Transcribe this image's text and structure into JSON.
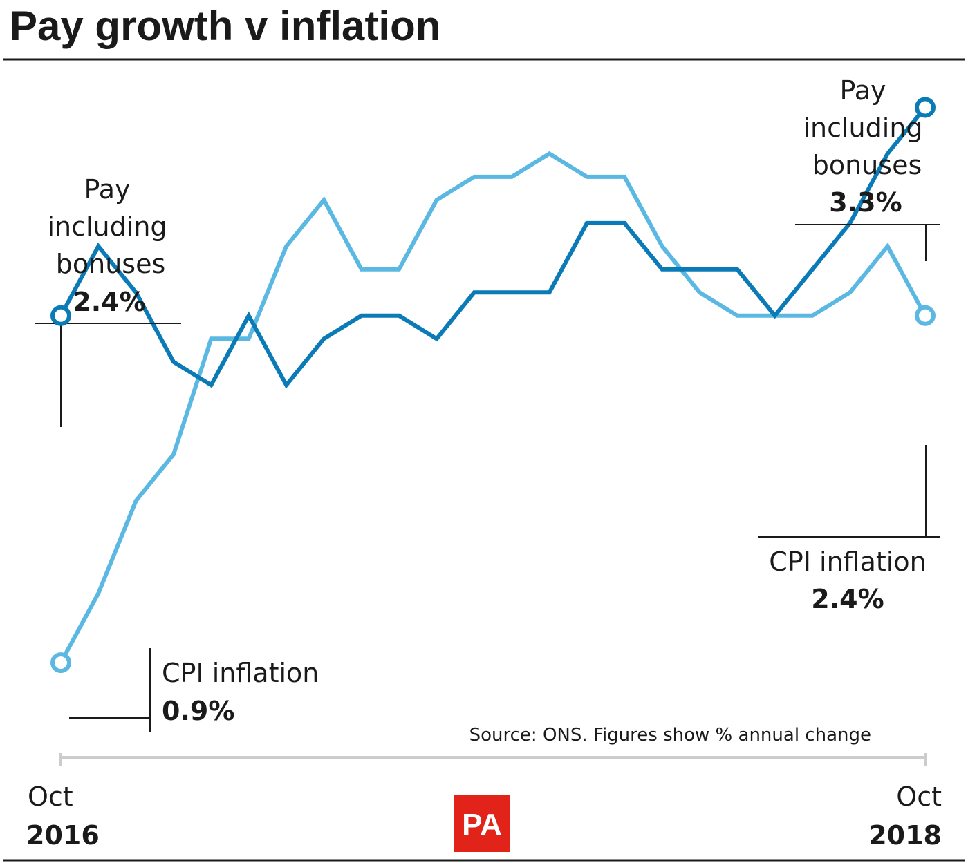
{
  "title": "Pay growth v inflation",
  "source": "Source: ONS. Figures show % annual change",
  "logo": "PA",
  "colors": {
    "pay": "#0a7bb6",
    "cpi": "#5bb8e2",
    "text": "#1a1a1a",
    "axis": "#cccccc",
    "logo_bg": "#e2231a"
  },
  "chart_data": {
    "type": "line",
    "x_start": "Oct 2016",
    "x_end": "Oct 2018",
    "ylim": [
      0.5,
      3.6
    ],
    "series": [
      {
        "name": "Pay including bonuses",
        "values": [
          2.4,
          2.7,
          2.5,
          2.2,
          2.1,
          2.4,
          2.1,
          2.3,
          2.4,
          2.4,
          2.3,
          2.5,
          2.5,
          2.5,
          2.8,
          2.8,
          2.6,
          2.6,
          2.6,
          2.4,
          2.6,
          2.8,
          3.1,
          3.3
        ]
      },
      {
        "name": "CPI inflation",
        "values": [
          0.9,
          1.2,
          1.6,
          1.8,
          2.3,
          2.3,
          2.7,
          2.9,
          2.6,
          2.6,
          2.9,
          3.0,
          3.0,
          3.1,
          3.0,
          3.0,
          2.7,
          2.5,
          2.4,
          2.4,
          2.4,
          2.5,
          2.7,
          2.4
        ]
      }
    ],
    "annotations": {
      "pay_start": {
        "lines": [
          "Pay",
          "including",
          "bonuses"
        ],
        "value": "2.4%"
      },
      "pay_end": {
        "lines": [
          "Pay",
          "including",
          "bonuses"
        ],
        "value": "3.3%"
      },
      "cpi_start": {
        "label": "CPI inflation",
        "value": "0.9%"
      },
      "cpi_end": {
        "label": "CPI inflation",
        "value": "2.4%"
      }
    },
    "x_labels": {
      "start": {
        "month": "Oct",
        "year": "2016"
      },
      "end": {
        "month": "Oct",
        "year": "2018"
      }
    }
  }
}
